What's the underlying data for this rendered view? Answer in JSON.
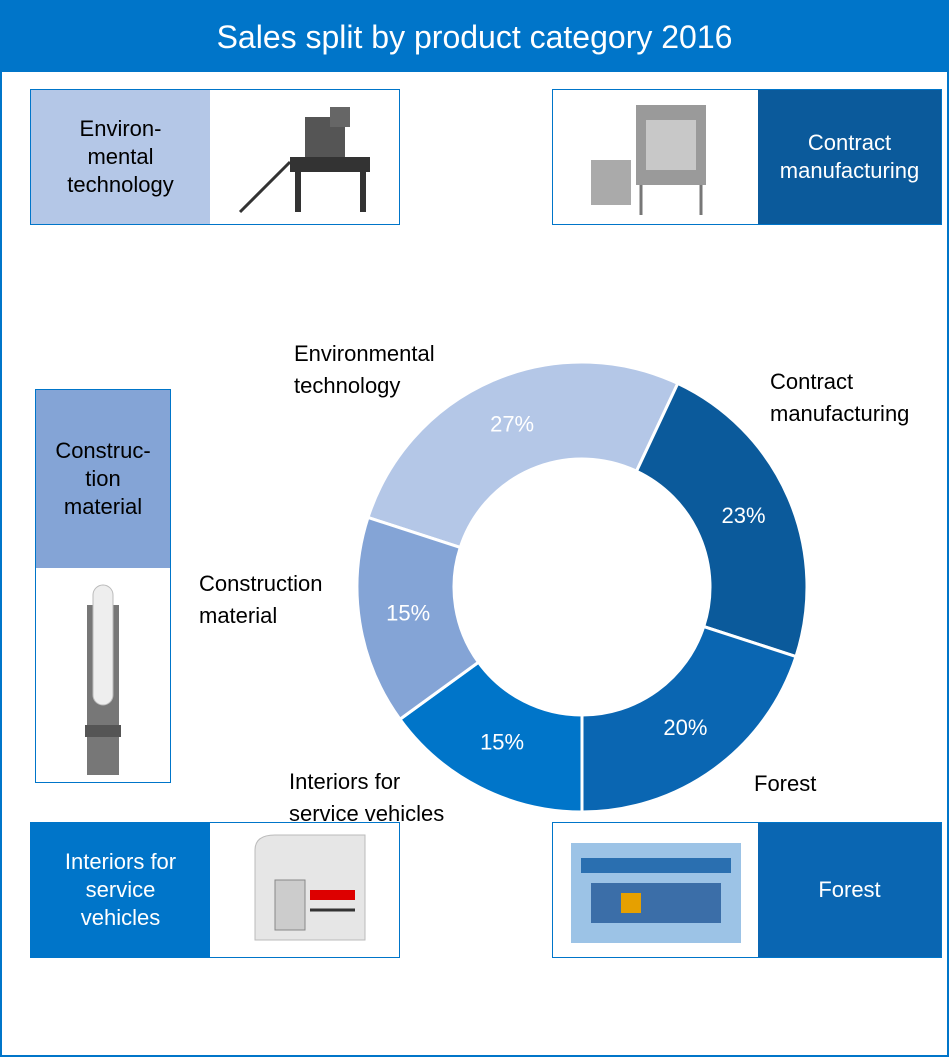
{
  "chart_data": {
    "type": "donut",
    "title": "Sales split by product category 2016",
    "categories": [
      [
        "Environmental",
        "technology"
      ],
      [
        "Contract",
        "manufacturing"
      ],
      [
        "Forest"
      ],
      [
        "Interiors for",
        "service vehicles"
      ],
      [
        "Construction",
        "material"
      ]
    ],
    "values": [
      27,
      23,
      20,
      15,
      15
    ],
    "value_labels": [
      "27%",
      "23%",
      "20%",
      "15%",
      "15%"
    ],
    "colors": [
      "#b4c7e7",
      "#0b5a9b",
      "#0a66b2",
      "#0075c9",
      "#84a4d6"
    ]
  },
  "panels": [
    {
      "lines": [
        "Environ-",
        "mental",
        "technology"
      ]
    },
    {
      "lines": [
        "Contract",
        "manufacturing"
      ]
    },
    {
      "lines": [
        "Construc-",
        "tion",
        "material"
      ]
    },
    {
      "lines": [
        "Interiors for",
        "service",
        "vehicles"
      ]
    },
    {
      "lines": [
        "Forest"
      ]
    }
  ]
}
